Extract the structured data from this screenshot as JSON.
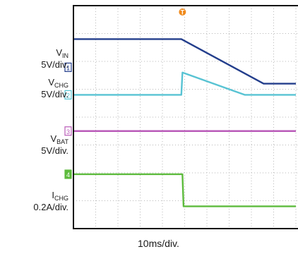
{
  "chart_data": {
    "type": "line",
    "title": "",
    "x": [
      0,
      1,
      2,
      3,
      4,
      5,
      6,
      7,
      8,
      9,
      10
    ],
    "x_division": "10ms/div.",
    "x_range_div": [
      0,
      10
    ],
    "trigger_marker": "T",
    "trigger_at_div": 4.9,
    "grid": true,
    "series": [
      {
        "name_main": "V",
        "name_sub": "IN",
        "scale": "5V/div.",
        "channel": "1",
        "color": "#233e8c",
        "points": [
          [
            0,
            6.8
          ],
          [
            4.85,
            6.8
          ],
          [
            8.55,
            5.2
          ],
          [
            10,
            5.2
          ]
        ]
      },
      {
        "name_main": "V",
        "name_sub": "CHG",
        "scale": "5V/div.",
        "channel": "2",
        "color": "#58c3d3",
        "points": [
          [
            0,
            4.8
          ],
          [
            4.85,
            4.8
          ],
          [
            4.9,
            5.6
          ],
          [
            7.7,
            4.8
          ],
          [
            10,
            4.8
          ]
        ]
      },
      {
        "name_main": "V",
        "name_sub": "BAT",
        "scale": "5V/div.",
        "channel": "3",
        "color": "#b95ab8",
        "points": [
          [
            0,
            3.5
          ],
          [
            10,
            3.5
          ]
        ]
      },
      {
        "name_main": "I",
        "name_sub": "CHG",
        "scale": "0.2A/div.",
        "channel": "4",
        "color": "#5dbb3d",
        "points": [
          [
            0,
            1.95
          ],
          [
            4.9,
            1.95
          ],
          [
            4.95,
            0.8
          ],
          [
            10,
            0.8
          ]
        ]
      }
    ]
  }
}
